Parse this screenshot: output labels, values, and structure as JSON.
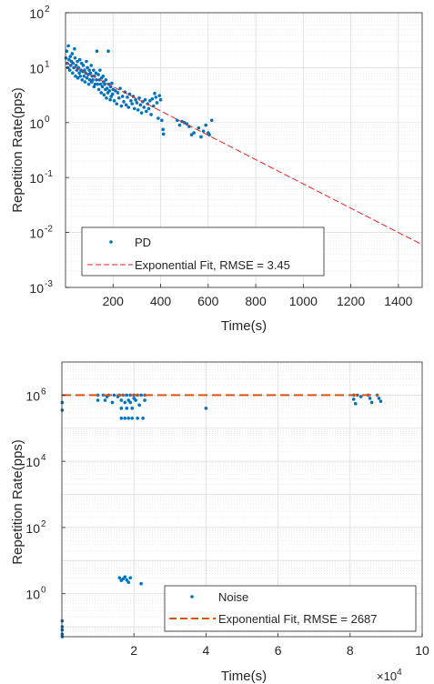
{
  "colors": {
    "data_blue": "#0072BD",
    "fit_red": "#EE2222",
    "fit_orange": "#D95319",
    "axis": "#262626",
    "grid": "#d9d9d9"
  },
  "chart_data": [
    {
      "type": "scatter",
      "xlabel": "Time(s)",
      "ylabel": "Repetition Rate(pps)",
      "xlim": [
        0,
        1500
      ],
      "ylim": [
        0.001,
        100
      ],
      "yscale": "log",
      "grid": true,
      "legend_position": "bottom-left",
      "x_ticks": [
        {
          "value": 200,
          "label": "200"
        },
        {
          "value": 400,
          "label": "400"
        },
        {
          "value": 600,
          "label": "600"
        },
        {
          "value": 800,
          "label": "800"
        },
        {
          "value": 1000,
          "label": "1000"
        },
        {
          "value": 1200,
          "label": "1200"
        },
        {
          "value": 1400,
          "label": "1400"
        }
      ],
      "y_ticks": [
        {
          "value": 0.001,
          "base": "10",
          "exp": "-3"
        },
        {
          "value": 0.01,
          "base": "10",
          "exp": "-2"
        },
        {
          "value": 0.1,
          "base": "10",
          "exp": "-1"
        },
        {
          "value": 1,
          "base": "10",
          "exp": "0"
        },
        {
          "value": 10,
          "base": "10",
          "exp": "1"
        },
        {
          "value": 100,
          "base": "10",
          "exp": "2"
        }
      ],
      "series": [
        {
          "name": "PD",
          "kind": "points",
          "color": "#0072BD",
          "points": [
            [
              2,
              15
            ],
            [
              5,
              20
            ],
            [
              8,
              12
            ],
            [
              10,
              10
            ],
            [
              12,
              25
            ],
            [
              15,
              14
            ],
            [
              18,
              9
            ],
            [
              20,
              16
            ],
            [
              22,
              11
            ],
            [
              25,
              13
            ],
            [
              28,
              18
            ],
            [
              30,
              8
            ],
            [
              32,
              12
            ],
            [
              35,
              10
            ],
            [
              38,
              22
            ],
            [
              40,
              15
            ],
            [
              42,
              7
            ],
            [
              45,
              11
            ],
            [
              48,
              9
            ],
            [
              50,
              13
            ],
            [
              52,
              6.5
            ],
            [
              55,
              10
            ],
            [
              58,
              8
            ],
            [
              60,
              14
            ],
            [
              62,
              7
            ],
            [
              65,
              9
            ],
            [
              68,
              12
            ],
            [
              70,
              6
            ],
            [
              72,
              8.5
            ],
            [
              75,
              11
            ],
            [
              78,
              7
            ],
            [
              80,
              9
            ],
            [
              82,
              5.5
            ],
            [
              85,
              8
            ],
            [
              88,
              13
            ],
            [
              90,
              6.5
            ],
            [
              92,
              10
            ],
            [
              95,
              7.5
            ],
            [
              98,
              5
            ],
            [
              100,
              9
            ],
            [
              102,
              6
            ],
            [
              105,
              8
            ],
            [
              108,
              11
            ],
            [
              110,
              5.5
            ],
            [
              112,
              7
            ],
            [
              115,
              6
            ],
            [
              118,
              9
            ],
            [
              120,
              4.5
            ],
            [
              122,
              7
            ],
            [
              125,
              5
            ],
            [
              128,
              8
            ],
            [
              130,
              6
            ],
            [
              132,
              20
            ],
            [
              135,
              5
            ],
            [
              138,
              7.5
            ],
            [
              140,
              4
            ],
            [
              142,
              6
            ],
            [
              145,
              9
            ],
            [
              148,
              5
            ],
            [
              150,
              3.5
            ],
            [
              152,
              6.5
            ],
            [
              155,
              4.5
            ],
            [
              158,
              7
            ],
            [
              160,
              5.5
            ],
            [
              162,
              3.2
            ],
            [
              165,
              5
            ],
            [
              168,
              4
            ],
            [
              170,
              6
            ],
            [
              172,
              2.8
            ],
            [
              175,
              4.2
            ],
            [
              178,
              3.5
            ],
            [
              180,
              20
            ],
            [
              182,
              5
            ],
            [
              185,
              3.8
            ],
            [
              188,
              2.6
            ],
            [
              190,
              4.5
            ],
            [
              192,
              3
            ],
            [
              195,
              5.2
            ],
            [
              198,
              3.3
            ],
            [
              200,
              4
            ],
            [
              205,
              2.5
            ],
            [
              210,
              3.8
            ],
            [
              215,
              2.2
            ],
            [
              220,
              3.5
            ],
            [
              225,
              2.8
            ],
            [
              230,
              4.2
            ],
            [
              235,
              2
            ],
            [
              240,
              3
            ],
            [
              245,
              2.4
            ],
            [
              250,
              3.6
            ],
            [
              255,
              2.1
            ],
            [
              260,
              2.9
            ],
            [
              265,
              1.9
            ],
            [
              270,
              3.3
            ],
            [
              275,
              2.5
            ],
            [
              280,
              2.2
            ],
            [
              285,
              3
            ],
            [
              290,
              1.8
            ],
            [
              295,
              2.6
            ],
            [
              300,
              2.3
            ],
            [
              305,
              1.7
            ],
            [
              310,
              2.8
            ],
            [
              315,
              2.1
            ],
            [
              320,
              1.5
            ],
            [
              325,
              2.4
            ],
            [
              330,
              1.9
            ],
            [
              335,
              2.6
            ],
            [
              340,
              1.6
            ],
            [
              345,
              2.2
            ],
            [
              350,
              1.8
            ],
            [
              355,
              2.5
            ],
            [
              360,
              1.4
            ],
            [
              365,
              2.7
            ],
            [
              370,
              2
            ],
            [
              375,
              3.4
            ],
            [
              380,
              2.9
            ],
            [
              385,
              2.3
            ],
            [
              390,
              1.2
            ],
            [
              395,
              3.1
            ],
            [
              400,
              2.6
            ],
            [
              405,
              1.1
            ],
            [
              410,
              0.75
            ],
            [
              412,
              0.62
            ],
            [
              470,
              1.1
            ],
            [
              480,
              0.9
            ],
            [
              490,
              1.05
            ],
            [
              500,
              1
            ],
            [
              510,
              0.95
            ],
            [
              520,
              0.85
            ],
            [
              530,
              0.6
            ],
            [
              540,
              0.65
            ],
            [
              560,
              0.8
            ],
            [
              570,
              0.55
            ],
            [
              580,
              0.7
            ],
            [
              590,
              0.9
            ],
            [
              600,
              0.65
            ],
            [
              605,
              0.6
            ],
            [
              615,
              1.1
            ]
          ]
        },
        {
          "name": "Exponential Fit, RMSE = 3.45",
          "kind": "dashed-line",
          "color": "#EE2222",
          "x": [
            0,
            1500
          ],
          "y": [
            12.5,
            0.006
          ]
        }
      ]
    },
    {
      "type": "scatter",
      "xlabel": "Time(s)",
      "ylabel": "Repetition Rate(pps)",
      "x_exponent_base": "10",
      "x_exponent_power": "4",
      "xlim": [
        0,
        100000
      ],
      "ylim": [
        0.05,
        10000000
      ],
      "yscale": "log",
      "grid": true,
      "legend_position": "bottom-right",
      "x_ticks": [
        {
          "value": 20000,
          "label": "2"
        },
        {
          "value": 40000,
          "label": "4"
        },
        {
          "value": 60000,
          "label": "6"
        },
        {
          "value": 80000,
          "label": "8"
        },
        {
          "value": 100000,
          "label": "10"
        }
      ],
      "y_ticks": [
        {
          "value": 1,
          "base": "10",
          "exp": "0"
        },
        {
          "value": 100,
          "base": "10",
          "exp": "2"
        },
        {
          "value": 10000,
          "base": "10",
          "exp": "4"
        },
        {
          "value": 1000000,
          "base": "10",
          "exp": "6"
        }
      ],
      "series": [
        {
          "name": "Noise",
          "kind": "points",
          "color": "#0072BD",
          "points": [
            [
              100,
              350000
            ],
            [
              100,
              600000
            ],
            [
              100,
              0.15
            ],
            [
              100,
              0.1
            ],
            [
              100,
              0.08
            ],
            [
              100,
              0.06
            ],
            [
              100,
              0.05
            ],
            [
              10000,
              1000000
            ],
            [
              10000,
              700000
            ],
            [
              11500,
              1000000
            ],
            [
              12000,
              700000
            ],
            [
              12500,
              900000
            ],
            [
              13000,
              1000000
            ],
            [
              14000,
              600000
            ],
            [
              14500,
              1000000
            ],
            [
              15500,
              900000
            ],
            [
              16000,
              1000000
            ],
            [
              16500,
              200000
            ],
            [
              16500,
              400000
            ],
            [
              16500,
              700000
            ],
            [
              17000,
              1000000
            ],
            [
              17500,
              200000
            ],
            [
              17500,
              600000
            ],
            [
              18000,
              1000000
            ],
            [
              18000,
              400000
            ],
            [
              18500,
              200000
            ],
            [
              18500,
              700000
            ],
            [
              19000,
              1000000
            ],
            [
              19000,
              600000
            ],
            [
              19500,
              200000
            ],
            [
              19500,
              400000
            ],
            [
              20000,
              1000000
            ],
            [
              20000,
              800000
            ],
            [
              20500,
              700000
            ],
            [
              21000,
              1000000
            ],
            [
              21000,
              200000
            ],
            [
              21500,
              500000
            ],
            [
              22000,
              1000000
            ],
            [
              22500,
              200000
            ],
            [
              23000,
              700000
            ],
            [
              23000,
              1000000
            ],
            [
              40000,
              400000
            ],
            [
              81000,
              1000000
            ],
            [
              81000,
              750000
            ],
            [
              81500,
              550000
            ],
            [
              82000,
              1000000
            ],
            [
              83000,
              900000
            ],
            [
              85000,
              1000000
            ],
            [
              85500,
              800000
            ],
            [
              86000,
              600000
            ],
            [
              87500,
              1000000
            ],
            [
              88000,
              800000
            ],
            [
              88500,
              650000
            ],
            [
              16000,
              3
            ],
            [
              16500,
              2.5
            ],
            [
              17000,
              2.8
            ],
            [
              17500,
              3.2
            ],
            [
              18000,
              2.6
            ],
            [
              18500,
              2.2
            ],
            [
              19000,
              3
            ],
            [
              22000,
              2
            ]
          ]
        },
        {
          "name": "Exponential Fit, RMSE = 2687",
          "kind": "dashed-line",
          "color": "#D95319",
          "x": [
            0,
            88000
          ],
          "y": [
            1000000,
            1000000
          ]
        }
      ]
    }
  ]
}
